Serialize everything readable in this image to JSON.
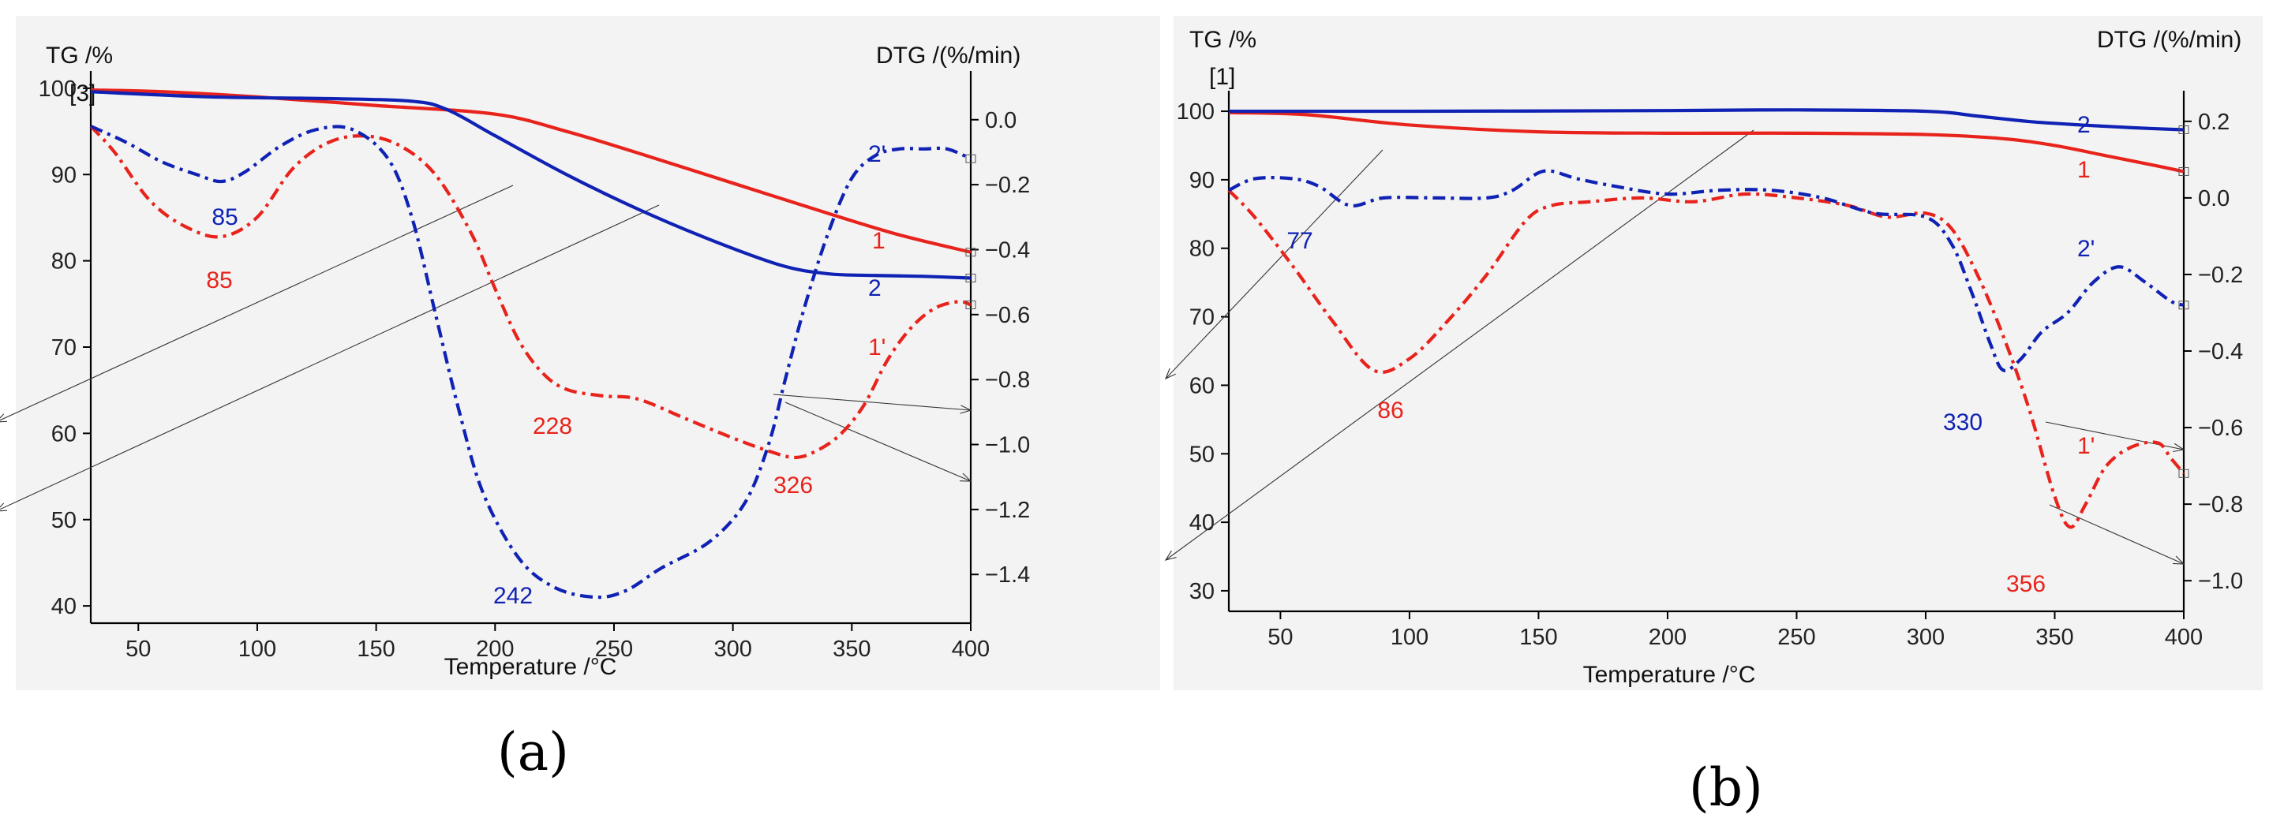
{
  "figure": {
    "sublabel_a": "(a)",
    "sublabel_b": "(b)"
  },
  "colors": {
    "curve1": "#e8231c",
    "curve2": "#0f22b4",
    "guide": "#333333"
  },
  "chart_data": [
    {
      "id": "a",
      "type": "line",
      "sublabel": "(a)",
      "y_left_label": "TG /%",
      "y_left_ref": "[3]",
      "y_right_label": "DTG /(%/min)",
      "xlabel": "Temperature /°C",
      "xlim": [
        30,
        400
      ],
      "ylim_left": [
        38,
        102
      ],
      "ylim_right": [
        -1.55,
        0.15
      ],
      "x_ticks": [
        50,
        100,
        150,
        200,
        250,
        300,
        350,
        400
      ],
      "y_left_ticks": [
        40,
        50,
        60,
        70,
        80,
        90,
        100
      ],
      "y_right_ticks": [
        0.0,
        -0.2,
        -0.4,
        -0.6,
        -0.8,
        -1.0,
        -1.2,
        -1.4
      ],
      "y_right_tick_labels": [
        "0.0",
        "−0.2",
        "−0.4",
        "−0.6",
        "−0.8",
        "−1.0",
        "−1.2",
        "−1.4"
      ],
      "series": [
        {
          "name": "1",
          "label": "1",
          "axis": "left",
          "style": "solid",
          "color": "#e8231c",
          "x": [
            30,
            60,
            100,
            150,
            200,
            230,
            260,
            300,
            340,
            370,
            400
          ],
          "y": [
            99.8,
            99.6,
            99.0,
            98.0,
            97.0,
            95.0,
            92.5,
            89.0,
            85.5,
            83.0,
            81.0
          ]
        },
        {
          "name": "2",
          "label": "2",
          "axis": "left",
          "style": "solid",
          "color": "#0f22b4",
          "x": [
            30,
            80,
            130,
            165,
            180,
            200,
            230,
            260,
            290,
            320,
            340,
            360,
            380,
            400
          ],
          "y": [
            99.6,
            99.0,
            98.8,
            98.5,
            97.5,
            94.5,
            90.0,
            86.0,
            82.5,
            79.5,
            78.5,
            78.3,
            78.2,
            78.0
          ]
        },
        {
          "name": "1'",
          "label": "1'",
          "axis": "right",
          "style": "dashdot",
          "color": "#e8231c",
          "x": [
            30,
            40,
            55,
            70,
            85,
            100,
            115,
            130,
            145,
            160,
            175,
            190,
            200,
            210,
            220,
            230,
            245,
            260,
            280,
            300,
            315,
            326,
            335,
            345,
            355,
            365,
            375,
            385,
            395,
            400
          ],
          "y": [
            -0.02,
            -0.1,
            -0.25,
            -0.33,
            -0.36,
            -0.3,
            -0.15,
            -0.07,
            -0.05,
            -0.08,
            -0.17,
            -0.35,
            -0.52,
            -0.68,
            -0.78,
            -0.83,
            -0.85,
            -0.86,
            -0.92,
            -0.98,
            -1.02,
            -1.04,
            -1.02,
            -0.97,
            -0.88,
            -0.74,
            -0.64,
            -0.58,
            -0.56,
            -0.57
          ]
        },
        {
          "name": "2'",
          "label": "2'",
          "axis": "right",
          "style": "dashdot",
          "color": "#0f22b4",
          "x": [
            30,
            45,
            60,
            75,
            85,
            95,
            110,
            125,
            140,
            155,
            165,
            175,
            185,
            195,
            210,
            225,
            242,
            255,
            270,
            290,
            305,
            315,
            322,
            330,
            340,
            350,
            360,
            370,
            380,
            390,
            400
          ],
          "y": [
            -0.02,
            -0.07,
            -0.13,
            -0.17,
            -0.19,
            -0.16,
            -0.08,
            -0.03,
            -0.03,
            -0.12,
            -0.3,
            -0.6,
            -0.9,
            -1.15,
            -1.35,
            -1.44,
            -1.47,
            -1.45,
            -1.38,
            -1.3,
            -1.18,
            -1.0,
            -0.8,
            -0.58,
            -0.35,
            -0.18,
            -0.11,
            -0.09,
            -0.09,
            -0.09,
            -0.12
          ]
        }
      ],
      "annotations": [
        {
          "text": "85",
          "color": "#0f22b4"
        },
        {
          "text": "85",
          "color": "#e8231c"
        },
        {
          "text": "242",
          "color": "#0f22b4"
        },
        {
          "text": "228",
          "color": "#e8231c"
        },
        {
          "text": "326",
          "color": "#e8231c"
        }
      ]
    },
    {
      "id": "b",
      "type": "line",
      "sublabel": "(b)",
      "y_left_label": "TG /%",
      "y_left_ref": "[1]",
      "y_right_label": "DTG /(%/min)",
      "xlabel": "Temperature /°C",
      "xlim": [
        30,
        400
      ],
      "ylim_left": [
        27,
        103
      ],
      "ylim_right": [
        -1.08,
        0.28
      ],
      "x_ticks": [
        50,
        100,
        150,
        200,
        250,
        300,
        350,
        400
      ],
      "y_left_ticks": [
        30,
        40,
        50,
        60,
        70,
        80,
        90,
        100
      ],
      "y_right_ticks": [
        0.2,
        0.0,
        -0.2,
        -0.4,
        -0.6,
        -0.8,
        -1.0
      ],
      "y_right_tick_labels": [
        "0.2",
        "0.0",
        "−0.2",
        "−0.4",
        "−0.6",
        "−0.8",
        "−1.0"
      ],
      "series": [
        {
          "name": "1",
          "label": "1",
          "axis": "left",
          "style": "solid",
          "color": "#e8231c",
          "x": [
            30,
            60,
            100,
            150,
            200,
            250,
            300,
            330,
            350,
            370,
            390,
            400
          ],
          "y": [
            99.8,
            99.5,
            98.0,
            97.0,
            96.8,
            96.8,
            96.6,
            96.0,
            95.0,
            93.5,
            92.0,
            91.2
          ]
        },
        {
          "name": "2",
          "label": "2",
          "axis": "left",
          "style": "solid",
          "color": "#0f22b4",
          "x": [
            30,
            100,
            200,
            250,
            300,
            320,
            340,
            360,
            380,
            400
          ],
          "y": [
            100.0,
            100.0,
            100.1,
            100.2,
            100.0,
            99.3,
            98.5,
            98.0,
            97.6,
            97.3
          ]
        },
        {
          "name": "1'",
          "label": "1'",
          "axis": "right",
          "style": "dashdot",
          "color": "#e8231c",
          "x": [
            30,
            40,
            55,
            70,
            86,
            100,
            115,
            130,
            145,
            155,
            170,
            190,
            210,
            230,
            250,
            270,
            285,
            300,
            310,
            320,
            330,
            340,
            350,
            356,
            362,
            370,
            380,
            390,
            395,
            400
          ],
          "y": [
            0.02,
            -0.05,
            -0.18,
            -0.32,
            -0.45,
            -0.42,
            -0.32,
            -0.2,
            -0.06,
            -0.02,
            -0.01,
            0.0,
            -0.01,
            0.01,
            0.0,
            -0.02,
            -0.05,
            -0.04,
            -0.08,
            -0.2,
            -0.36,
            -0.55,
            -0.78,
            -0.86,
            -0.8,
            -0.7,
            -0.65,
            -0.64,
            -0.68,
            -0.72
          ]
        },
        {
          "name": "2'",
          "label": "2'",
          "axis": "right",
          "style": "dashdot",
          "color": "#0f22b4",
          "x": [
            30,
            40,
            55,
            65,
            77,
            90,
            110,
            130,
            140,
            152,
            165,
            180,
            200,
            220,
            240,
            260,
            280,
            300,
            310,
            318,
            325,
            330,
            337,
            345,
            355,
            365,
            375,
            385,
            395,
            400
          ],
          "y": [
            0.02,
            0.05,
            0.05,
            0.03,
            -0.02,
            0.0,
            0.0,
            0.0,
            0.02,
            0.07,
            0.05,
            0.03,
            0.01,
            0.02,
            0.02,
            0.0,
            -0.04,
            -0.05,
            -0.12,
            -0.25,
            -0.38,
            -0.45,
            -0.42,
            -0.35,
            -0.3,
            -0.22,
            -0.18,
            -0.22,
            -0.27,
            -0.28
          ]
        }
      ],
      "annotations": [
        {
          "text": "77",
          "color": "#0f22b4"
        },
        {
          "text": "86",
          "color": "#e8231c"
        },
        {
          "text": "330",
          "color": "#0f22b4"
        },
        {
          "text": "356",
          "color": "#e8231c"
        }
      ]
    }
  ]
}
